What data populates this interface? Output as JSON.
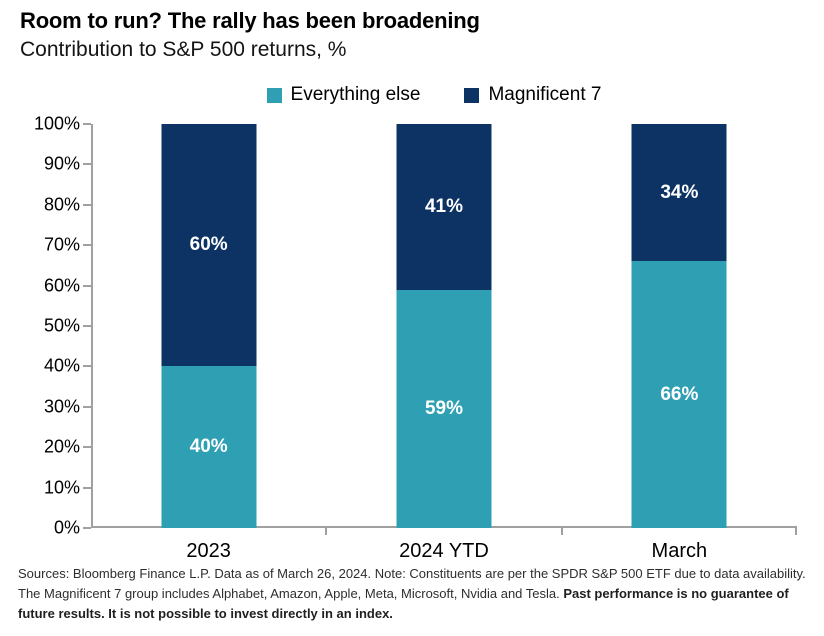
{
  "header": {
    "title": "Room to run? The rally has been broadening",
    "subtitle": "Contribution to S&P 500 returns, %"
  },
  "legend": [
    {
      "label": "Everything else",
      "color": "#2f9fb4",
      "swatch_icon": "square-icon"
    },
    {
      "label": "Magnificent 7",
      "color": "#0c3364",
      "swatch_icon": "square-icon"
    }
  ],
  "chart_data": {
    "type": "bar",
    "stacked": true,
    "title": "Room to run? The rally has been broadening",
    "subtitle": "Contribution to S&P 500 returns, %",
    "categories": [
      "2023",
      "2024 YTD",
      "March"
    ],
    "series": [
      {
        "name": "Everything else",
        "color": "#2f9fb4",
        "values": [
          40,
          59,
          66
        ]
      },
      {
        "name": "Magnificent 7",
        "color": "#0c3364",
        "values": [
          60,
          41,
          34
        ]
      }
    ],
    "value_labels": [
      [
        "40%",
        "59%",
        "66%"
      ],
      [
        "60%",
        "41%",
        "34%"
      ]
    ],
    "xlabel": "",
    "ylabel": "",
    "ylim": [
      0,
      100
    ],
    "ytick_step": 10,
    "ytick_suffix": "%",
    "grid": false,
    "legend_position": "top-center",
    "axis_color": "#a0a0a0",
    "value_label_color": "#ffffff"
  },
  "footer": {
    "source_text": "Sources: Bloomberg Finance L.P. Data as of March 26, 2024. Note: Constituents are per the SPDR S&P 500 ETF due to data availability. The Magnificent 7 group includes Alphabet, Amazon, Apple, Meta, Microsoft, Nvidia and Tesla. ",
    "disclaimer_text": "Past performance is no guarantee of future results. It is not possible to invest directly in an index."
  }
}
